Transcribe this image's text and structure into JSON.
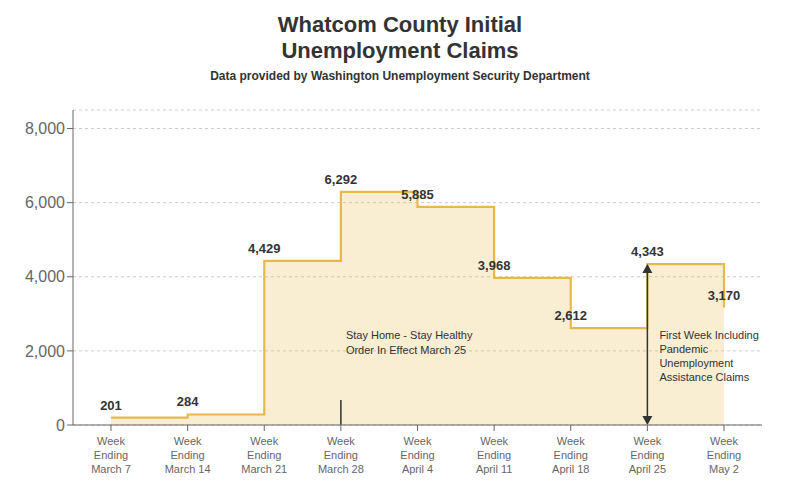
{
  "chart_data": {
    "type": "step",
    "title": "Whatcom County Initial\nUnemployment Claims",
    "subtitle": "Data provided by Washington Unemployment Security Department",
    "categories": [
      "Week\nEnding\nMarch 7",
      "Week\nEnding\nMarch 14",
      "Week\nEnding\nMarch 21",
      "Week\nEnding\nMarch 28",
      "Week\nEnding\nApril 4",
      "Week\nEnding\nApril 11",
      "Week\nEnding\nApril 18",
      "Week\nEnding\nApril 25",
      "Week\nEnding\nMay 2"
    ],
    "values": [
      201,
      284,
      4429,
      6292,
      5885,
      3968,
      2612,
      4343,
      3170
    ],
    "value_labels": [
      "201",
      "284",
      "4,429",
      "6,292",
      "5,885",
      "3,968",
      "2,612",
      "4,343",
      "3,170"
    ],
    "data_labels": true,
    "color": "#e8b84b",
    "ylim": [
      0,
      8500
    ],
    "yticks": [
      0,
      {
        "value": 2000,
        "label": "2,000"
      },
      {
        "value": 4000,
        "label": "4,000"
      },
      {
        "value": 6000,
        "label": "6,000"
      },
      {
        "value": 8000,
        "label": "8,000"
      }
    ],
    "grid": true,
    "annotations": [
      {
        "text": "Stay Home - Stay Healthy\nOrder In Effect March 25",
        "category": "Week\nEnding\nMarch 28",
        "marker": "line"
      },
      {
        "text": "First Week Including\nPandemic\nUnemployment\nAssistance Claims",
        "category": "Week\nEnding\nApril 25",
        "marker": "arrow"
      }
    ]
  }
}
